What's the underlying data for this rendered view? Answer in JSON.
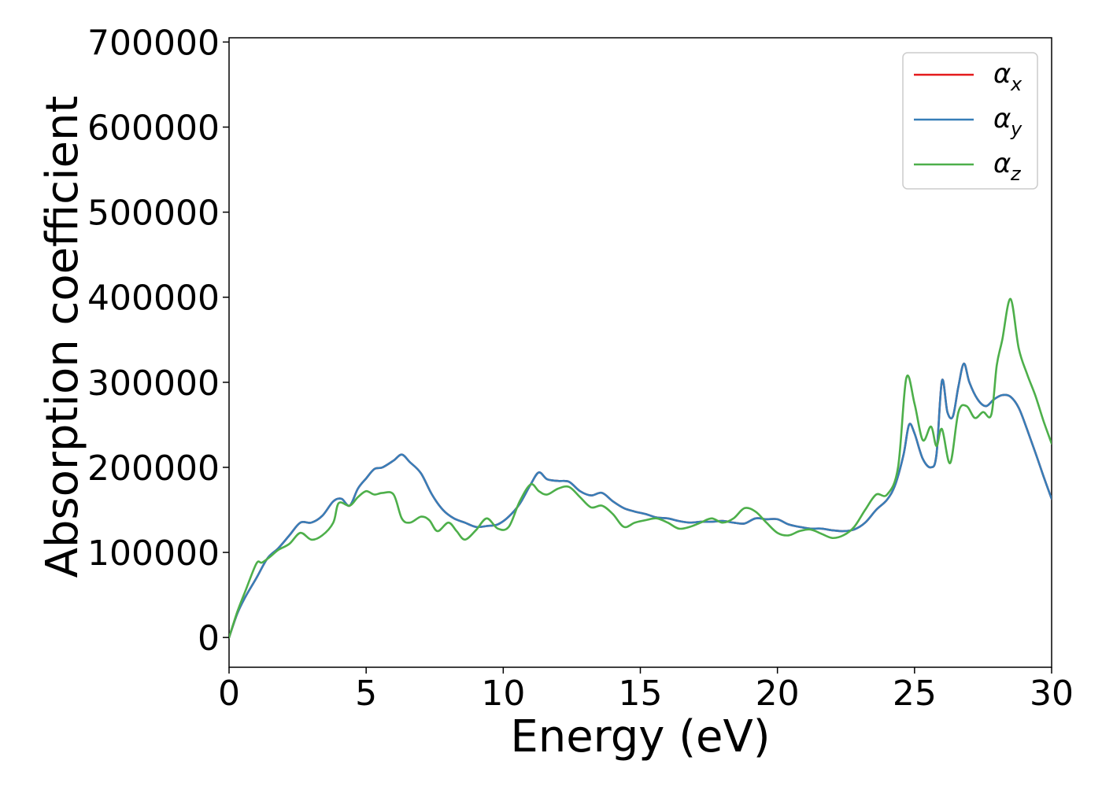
{
  "chart_data": {
    "type": "line",
    "title": "",
    "xlabel": "Energy (eV)",
    "ylabel": "Absorption coefficient",
    "xlim": [
      0,
      30
    ],
    "ylim": [
      -35000,
      705000
    ],
    "x_ticks": [
      0,
      5,
      10,
      15,
      20,
      25,
      30
    ],
    "x_tick_labels": [
      "0",
      "5",
      "10",
      "15",
      "20",
      "25",
      "30"
    ],
    "y_ticks": [
      0,
      100000,
      200000,
      300000,
      400000,
      500000,
      600000,
      700000
    ],
    "y_tick_labels": [
      "0",
      "100000",
      "200000",
      "300000",
      "400000",
      "500000",
      "600000",
      "700000"
    ],
    "grid": false,
    "legend_position": "top-right",
    "series": [
      {
        "name": "α",
        "subscript": "x",
        "color": "#e41a1c",
        "x": [
          0,
          0.3,
          0.6,
          1.0,
          1.4,
          1.8,
          2.2,
          2.6,
          3.0,
          3.4,
          3.8,
          4.1,
          4.4,
          4.7,
          5.0,
          5.3,
          5.6,
          6.0,
          6.3,
          6.6,
          7.0,
          7.4,
          7.8,
          8.2,
          8.6,
          9.0,
          9.4,
          9.8,
          10.2,
          10.6,
          11.0,
          11.3,
          11.6,
          12.0,
          12.4,
          12.8,
          13.2,
          13.6,
          14.0,
          14.4,
          14.8,
          15.2,
          15.6,
          16.0,
          16.4,
          16.8,
          17.2,
          17.6,
          18.0,
          18.4,
          18.8,
          19.2,
          19.6,
          20.0,
          20.4,
          20.8,
          21.2,
          21.6,
          22.0,
          22.4,
          22.8,
          23.2,
          23.6,
          24.0,
          24.3,
          24.6,
          24.8,
          25.0,
          25.3,
          25.6,
          25.8,
          26.0,
          26.2,
          26.4,
          26.6,
          26.8,
          27.0,
          27.3,
          27.6,
          27.9,
          28.2,
          28.5,
          28.8,
          29.1,
          29.4,
          29.7,
          30.0
        ],
        "values": [
          0,
          28000,
          48000,
          70000,
          93000,
          105000,
          120000,
          135000,
          135000,
          143000,
          160000,
          163000,
          155000,
          175000,
          187000,
          198000,
          200000,
          208000,
          215000,
          206000,
          193000,
          168000,
          150000,
          140000,
          135000,
          130000,
          131000,
          133000,
          142000,
          157000,
          180000,
          194000,
          186000,
          184000,
          183000,
          172000,
          167000,
          170000,
          160000,
          152000,
          148000,
          145000,
          141000,
          140000,
          137000,
          135000,
          136000,
          136000,
          137000,
          135000,
          134000,
          140000,
          139000,
          139000,
          133000,
          130000,
          128000,
          128000,
          126000,
          125000,
          127000,
          135000,
          150000,
          162000,
          180000,
          215000,
          250000,
          240000,
          210000,
          200000,
          215000,
          302000,
          265000,
          260000,
          295000,
          322000,
          300000,
          280000,
          272000,
          280000,
          285000,
          283000,
          270000,
          245000,
          218000,
          190000,
          163000
        ]
      },
      {
        "name": "α",
        "subscript": "y",
        "color": "#377eb8",
        "x": [
          0,
          0.3,
          0.6,
          1.0,
          1.4,
          1.8,
          2.2,
          2.6,
          3.0,
          3.4,
          3.8,
          4.1,
          4.4,
          4.7,
          5.0,
          5.3,
          5.6,
          6.0,
          6.3,
          6.6,
          7.0,
          7.4,
          7.8,
          8.2,
          8.6,
          9.0,
          9.4,
          9.8,
          10.2,
          10.6,
          11.0,
          11.3,
          11.6,
          12.0,
          12.4,
          12.8,
          13.2,
          13.6,
          14.0,
          14.4,
          14.8,
          15.2,
          15.6,
          16.0,
          16.4,
          16.8,
          17.2,
          17.6,
          18.0,
          18.4,
          18.8,
          19.2,
          19.6,
          20.0,
          20.4,
          20.8,
          21.2,
          21.6,
          22.0,
          22.4,
          22.8,
          23.2,
          23.6,
          24.0,
          24.3,
          24.6,
          24.8,
          25.0,
          25.3,
          25.6,
          25.8,
          26.0,
          26.2,
          26.4,
          26.6,
          26.8,
          27.0,
          27.3,
          27.6,
          27.9,
          28.2,
          28.5,
          28.8,
          29.1,
          29.4,
          29.7,
          30.0
        ],
        "values": [
          0,
          28000,
          48000,
          70000,
          93000,
          105000,
          120000,
          135000,
          135000,
          143000,
          160000,
          163000,
          155000,
          175000,
          187000,
          198000,
          200000,
          208000,
          215000,
          206000,
          193000,
          168000,
          150000,
          140000,
          135000,
          130000,
          131000,
          133000,
          142000,
          157000,
          180000,
          194000,
          186000,
          184000,
          183000,
          172000,
          167000,
          170000,
          160000,
          152000,
          148000,
          145000,
          141000,
          140000,
          137000,
          135000,
          136000,
          136000,
          137000,
          135000,
          134000,
          140000,
          139000,
          139000,
          133000,
          130000,
          128000,
          128000,
          126000,
          125000,
          127000,
          135000,
          150000,
          162000,
          180000,
          215000,
          250000,
          240000,
          210000,
          200000,
          215000,
          302000,
          265000,
          260000,
          295000,
          322000,
          300000,
          280000,
          272000,
          280000,
          285000,
          283000,
          270000,
          245000,
          218000,
          190000,
          163000
        ]
      },
      {
        "name": "α",
        "subscript": "z",
        "color": "#4daf4a",
        "x": [
          0,
          0.3,
          0.6,
          1.0,
          1.2,
          1.5,
          1.8,
          2.2,
          2.6,
          3.0,
          3.4,
          3.8,
          4.0,
          4.4,
          4.7,
          5.0,
          5.3,
          5.6,
          6.0,
          6.3,
          6.6,
          7.0,
          7.3,
          7.6,
          8.0,
          8.3,
          8.6,
          9.0,
          9.4,
          9.8,
          10.2,
          10.6,
          11.0,
          11.3,
          11.6,
          12.0,
          12.4,
          12.8,
          13.2,
          13.6,
          14.0,
          14.4,
          14.8,
          15.2,
          15.6,
          16.0,
          16.4,
          16.8,
          17.2,
          17.6,
          18.0,
          18.4,
          18.8,
          19.2,
          19.6,
          20.0,
          20.4,
          20.8,
          21.2,
          21.6,
          22.0,
          22.4,
          22.8,
          23.2,
          23.6,
          24.0,
          24.4,
          24.7,
          25.0,
          25.3,
          25.6,
          25.8,
          26.0,
          26.3,
          26.6,
          26.9,
          27.2,
          27.5,
          27.8,
          28.0,
          28.2,
          28.5,
          28.8,
          29.1,
          29.4,
          29.7,
          30.0
        ],
        "values": [
          0,
          30000,
          55000,
          87000,
          88000,
          95000,
          103000,
          110000,
          123000,
          115000,
          120000,
          135000,
          158000,
          155000,
          165000,
          172000,
          168000,
          170000,
          168000,
          140000,
          135000,
          142000,
          138000,
          125000,
          135000,
          125000,
          115000,
          126000,
          140000,
          128000,
          130000,
          160000,
          180000,
          172000,
          168000,
          175000,
          177000,
          165000,
          153000,
          155000,
          145000,
          130000,
          135000,
          138000,
          140000,
          135000,
          128000,
          130000,
          135000,
          140000,
          135000,
          140000,
          152000,
          148000,
          135000,
          123000,
          120000,
          125000,
          127000,
          122000,
          117000,
          120000,
          130000,
          150000,
          168000,
          168000,
          200000,
          305000,
          275000,
          232000,
          248000,
          225000,
          245000,
          205000,
          265000,
          272000,
          258000,
          265000,
          262000,
          320000,
          350000,
          398000,
          340000,
          310000,
          285000,
          255000,
          228000
        ]
      }
    ]
  }
}
